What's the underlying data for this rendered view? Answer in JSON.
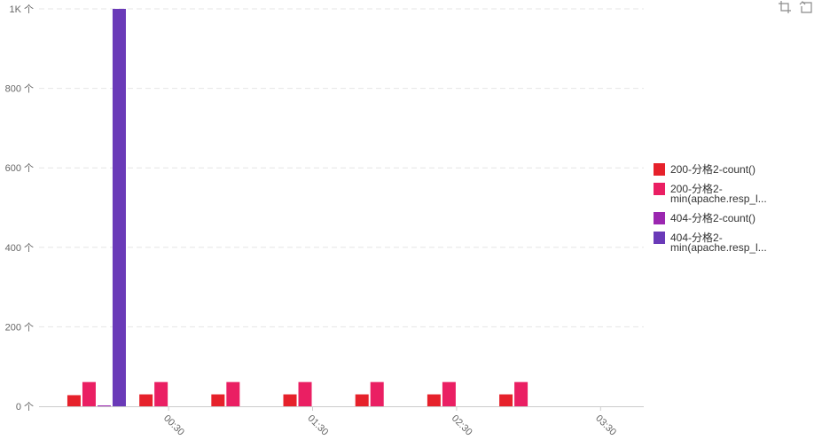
{
  "toolbar": {
    "icons": [
      "crop-icon",
      "reset-icon"
    ]
  },
  "chart_data": {
    "type": "bar",
    "y_ticks": [
      "0 个",
      "200 个",
      "400 个",
      "600 个",
      "800 个",
      "1K 个"
    ],
    "ylim": [
      0,
      1000
    ],
    "grid": true,
    "legend_position": "right",
    "x_ticks": [
      {
        "label": "00:30",
        "at": 0.5
      },
      {
        "label": "01:30",
        "at": 1.5
      },
      {
        "label": "02:30",
        "at": 2.5
      },
      {
        "label": "03:30",
        "at": 3.5
      }
    ],
    "x_range": [
      -0.4,
      3.8
    ],
    "groups": [
      {
        "x": 0.0
      },
      {
        "x": 0.5
      },
      {
        "x": 1.0
      },
      {
        "x": 1.5
      },
      {
        "x": 2.0
      },
      {
        "x": 2.5
      },
      {
        "x": 3.0
      }
    ],
    "series": [
      {
        "name": "200-分格2-count()",
        "legend_lines": [
          "200-分格2-count()"
        ],
        "color": "#e6212b",
        "values": [
          28,
          30,
          30,
          30,
          30,
          30,
          30
        ]
      },
      {
        "name": "200-分格2-min(apache.resp_l...",
        "legend_lines": [
          "200-分格2-",
          "min(apache.resp_l..."
        ],
        "color": "#ea1f63",
        "values": [
          61,
          61,
          61,
          61,
          61,
          61,
          61
        ]
      },
      {
        "name": "404-分格2-count()",
        "legend_lines": [
          "404-分格2-count()"
        ],
        "color": "#9b27b0",
        "values": [
          1,
          0,
          0,
          0,
          0,
          0,
          0
        ]
      },
      {
        "name": "404-分格2-min(apache.resp_l...",
        "legend_lines": [
          "404-分格2-",
          "min(apache.resp_l..."
        ],
        "color": "#6a3ab8",
        "values": [
          1000,
          0,
          0,
          0,
          0,
          0,
          0
        ]
      }
    ]
  }
}
